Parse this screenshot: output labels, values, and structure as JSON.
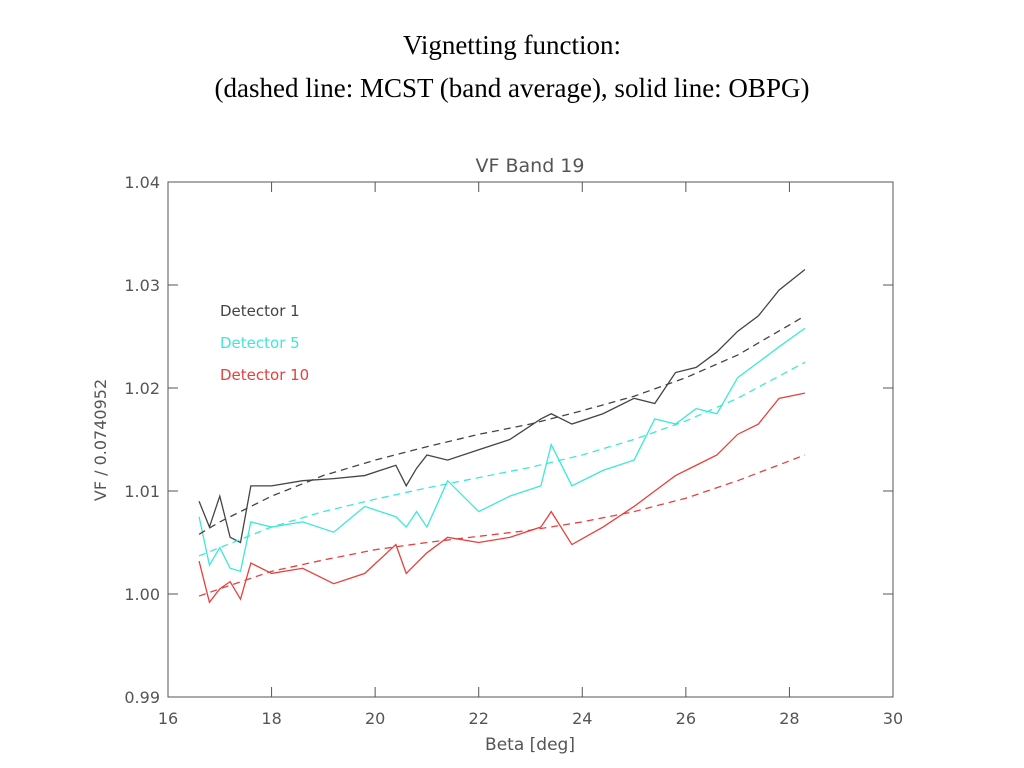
{
  "heading": [
    "Vignetting function:",
    "(dashed line: MCST (band average), solid line: OBPG)"
  ],
  "chart_data": {
    "type": "line",
    "title": "VF Band 19",
    "x_label": "Beta [deg]",
    "y_label": "VF / 0.0740952",
    "xlim": [
      16,
      30
    ],
    "xticks": [
      16,
      18,
      20,
      22,
      24,
      26,
      28,
      30
    ],
    "ylim": [
      0.99,
      1.04
    ],
    "yticks": [
      0.99,
      {
        "value": 1.0,
        "label": "1.00"
      },
      1.01,
      1.02,
      1.03,
      1.04
    ],
    "legend": "upper left",
    "x": [
      16.6,
      16.8,
      17.0,
      17.2,
      17.4,
      17.6,
      18.0,
      18.6,
      19.2,
      19.8,
      20.4,
      20.6,
      20.8,
      21.0,
      21.4,
      22.0,
      22.6,
      23.2,
      23.4,
      23.8,
      24.4,
      25.0,
      25.4,
      25.8,
      26.2,
      26.6,
      27.0,
      27.4,
      27.8,
      28.3
    ],
    "series": [
      {
        "name": "Detector 1",
        "color": "#444444",
        "dash": false,
        "values": [
          1.009,
          1.0065,
          1.0095,
          1.0055,
          1.005,
          1.0105,
          1.0105,
          1.011,
          1.0112,
          1.0115,
          1.0125,
          1.0105,
          1.0122,
          1.0135,
          1.013,
          1.014,
          1.015,
          1.017,
          1.0175,
          1.0165,
          1.0175,
          1.019,
          1.0185,
          1.0215,
          1.022,
          1.0235,
          1.0255,
          1.027,
          1.0295,
          1.0315
        ]
      },
      {
        "name": "Detector 5",
        "color": "#3ee8d8",
        "dash": false,
        "values": [
          1.0075,
          1.0028,
          1.0045,
          1.0025,
          1.0022,
          1.007,
          1.0065,
          1.007,
          1.006,
          1.0085,
          1.0075,
          1.0065,
          1.008,
          1.0065,
          1.011,
          1.008,
          1.0095,
          1.0105,
          1.0145,
          1.0105,
          1.012,
          1.013,
          1.017,
          1.0165,
          1.018,
          1.0175,
          1.021,
          1.0225,
          1.024,
          1.0258
        ]
      },
      {
        "name": "Detector 10",
        "color": "#e8403c",
        "dash": false,
        "values": [
          1.0032,
          0.9992,
          1.0005,
          1.0012,
          0.9995,
          1.003,
          1.002,
          1.0025,
          1.001,
          1.002,
          1.0048,
          1.002,
          1.003,
          1.004,
          1.0055,
          1.005,
          1.0055,
          1.0065,
          1.008,
          1.0048,
          1.0065,
          1.0085,
          1.01,
          1.0115,
          1.0125,
          1.0135,
          1.0155,
          1.0165,
          1.019,
          1.0195
        ]
      },
      {
        "color": "#444444",
        "dash": true,
        "x": [
          16.6,
          17,
          18,
          19,
          20,
          21,
          22,
          23,
          24,
          25,
          26,
          27,
          28.3
        ],
        "values": [
          1.0058,
          1.007,
          1.0095,
          1.0115,
          1.013,
          1.0143,
          1.0155,
          1.0165,
          1.0178,
          1.0192,
          1.021,
          1.0232,
          1.027
        ]
      },
      {
        "color": "#3ee8d8",
        "dash": true,
        "x": [
          16.6,
          17,
          18,
          19,
          20,
          21,
          22,
          23,
          24,
          25,
          26,
          27,
          28.3
        ],
        "values": [
          1.0037,
          1.0045,
          1.0065,
          1.008,
          1.0092,
          1.0103,
          1.0113,
          1.0123,
          1.0135,
          1.015,
          1.0168,
          1.019,
          1.0225
        ]
      },
      {
        "color": "#e8403c",
        "dash": true,
        "x": [
          16.6,
          17,
          18,
          19,
          20,
          21,
          22,
          23,
          24,
          25,
          26,
          27,
          28.3
        ],
        "values": [
          0.9998,
          1.0005,
          1.0022,
          1.0033,
          1.0043,
          1.005,
          1.0056,
          1.0062,
          1.007,
          1.008,
          1.0093,
          1.011,
          1.0135
        ]
      }
    ]
  }
}
